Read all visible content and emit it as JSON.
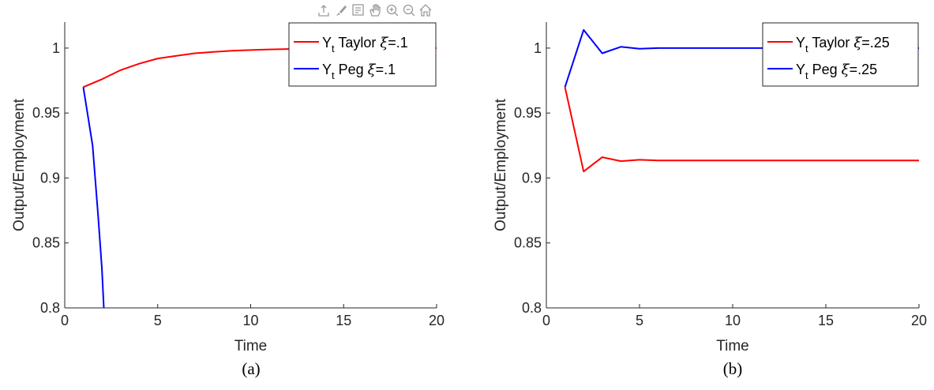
{
  "toolbar": {
    "icons": [
      "export-icon",
      "brush-icon",
      "datatip-icon",
      "pan-hand-icon",
      "zoom-in-icon",
      "zoom-out-icon",
      "home-icon"
    ]
  },
  "chart_data": [
    {
      "type": "line",
      "caption": "(a)",
      "xlabel": "Time",
      "ylabel": "Output/Employment",
      "xlim": [
        0,
        20
      ],
      "ylim": [
        0.8,
        1.02
      ],
      "xticks": [
        0,
        5,
        10,
        15,
        20
      ],
      "yticks": [
        0.8,
        0.85,
        0.9,
        0.95,
        1
      ],
      "xtick_labels": [
        "0",
        "5",
        "10",
        "15",
        "20"
      ],
      "ytick_labels": [
        "0.8",
        "0.85",
        "0.9",
        "0.95",
        "1"
      ],
      "legend_position": "top-right",
      "series": [
        {
          "label_main": "Y",
          "label_sub": "t",
          "label_rest": " Taylor ",
          "label_xi": "ξ",
          "label_val": "=.1",
          "color": "#ff0000",
          "x": [
            1,
            2,
            3,
            4,
            5,
            6,
            7,
            8,
            9,
            10,
            11,
            12,
            13,
            14,
            15,
            16,
            17,
            18,
            19,
            20
          ],
          "y": [
            0.97,
            0.976,
            0.983,
            0.988,
            0.992,
            0.994,
            0.996,
            0.997,
            0.998,
            0.9985,
            0.999,
            0.9993,
            0.9995,
            0.9996,
            0.9997,
            0.9998,
            0.9998,
            0.9999,
            0.9999,
            1.0
          ]
        },
        {
          "label_main": "Y",
          "label_sub": "t",
          "label_rest": " Peg ",
          "label_xi": "ξ",
          "label_val": "=.1",
          "color": "#0000ff",
          "x": [
            1,
            1.5,
            1.8,
            2,
            2.1
          ],
          "y": [
            0.97,
            0.925,
            0.87,
            0.83,
            0.8
          ]
        }
      ]
    },
    {
      "type": "line",
      "caption": "(b)",
      "xlabel": "Time",
      "ylabel": "Output/Employment",
      "xlim": [
        0,
        20
      ],
      "ylim": [
        0.8,
        1.02
      ],
      "xticks": [
        0,
        5,
        10,
        15,
        20
      ],
      "yticks": [
        0.8,
        0.85,
        0.9,
        0.95,
        1
      ],
      "xtick_labels": [
        "0",
        "5",
        "10",
        "15",
        "20"
      ],
      "ytick_labels": [
        "0.8",
        "0.85",
        "0.9",
        "0.95",
        "1"
      ],
      "legend_position": "top-right",
      "series": [
        {
          "label_main": "Y",
          "label_sub": "t",
          "label_rest": " Taylor ",
          "label_xi": "ξ",
          "label_val": "=.25",
          "color": "#ff0000",
          "x": [
            1,
            2,
            3,
            4,
            5,
            6,
            7,
            8,
            9,
            10,
            11,
            12,
            13,
            14,
            15,
            16,
            17,
            18,
            19,
            20
          ],
          "y": [
            0.97,
            0.905,
            0.916,
            0.913,
            0.914,
            0.9135,
            0.9135,
            0.9135,
            0.9135,
            0.9135,
            0.9135,
            0.9135,
            0.9135,
            0.9135,
            0.9135,
            0.9135,
            0.9135,
            0.9135,
            0.9135,
            0.9135
          ]
        },
        {
          "label_main": "Y",
          "label_sub": "t",
          "label_rest": " Peg ",
          "label_xi": "ξ",
          "label_val": "=.25",
          "color": "#0000ff",
          "x": [
            1,
            2,
            3,
            4,
            5,
            6,
            7,
            8,
            9,
            10,
            11,
            12,
            13,
            14,
            15,
            16,
            17,
            18,
            19,
            20
          ],
          "y": [
            0.97,
            1.014,
            0.996,
            1.001,
            0.9995,
            1.0,
            1.0,
            1.0,
            1.0,
            1.0,
            1.0,
            1.0,
            1.0,
            1.0,
            1.0,
            1.0,
            1.0,
            1.0,
            1.0,
            1.0
          ]
        }
      ]
    }
  ]
}
